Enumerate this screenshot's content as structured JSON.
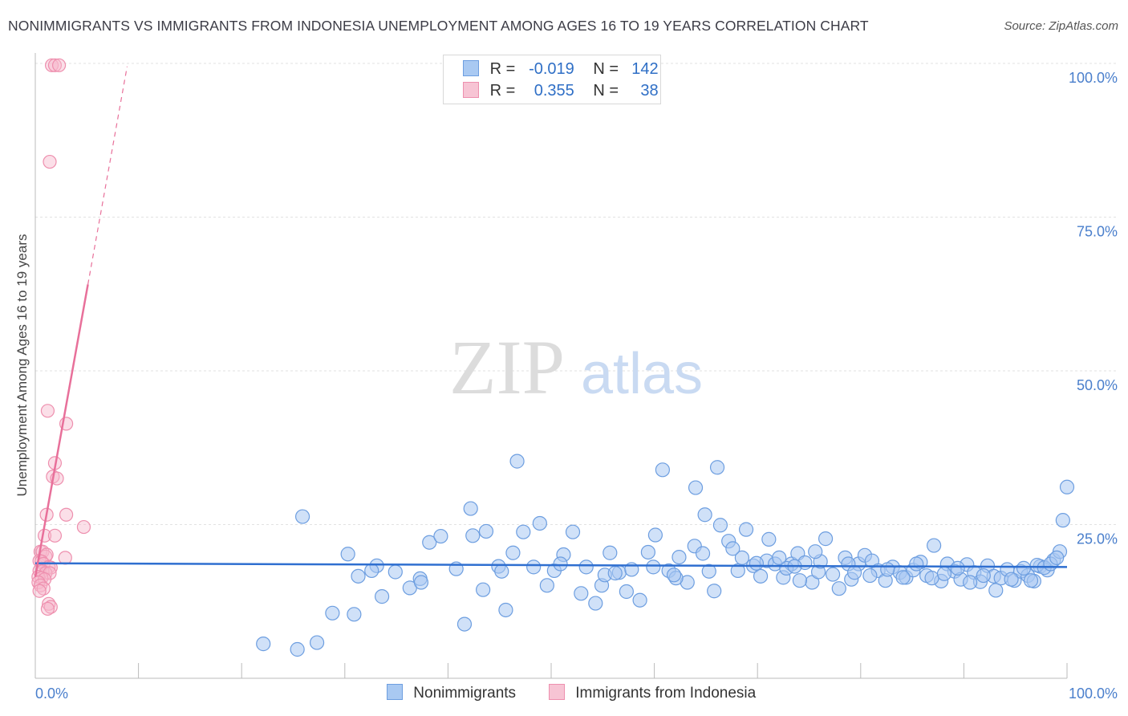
{
  "title": "NONIMMIGRANTS VS IMMIGRANTS FROM INDONESIA UNEMPLOYMENT AMONG AGES 16 TO 19 YEARS CORRELATION CHART",
  "source": "Source: ZipAtlas.com",
  "watermark": {
    "zip": "ZIP",
    "atlas": "atlas"
  },
  "legend": {
    "rows": [
      {
        "r_label": "R =",
        "r_value": "-0.019",
        "n_label": "N =",
        "n_value": "142"
      },
      {
        "r_label": "R =",
        "r_value": "0.355",
        "n_label": "N =",
        "n_value": "38"
      }
    ]
  },
  "bottom_legend": {
    "nonimmigrants": "Nonimmigrants",
    "immigrants": "Immigrants from Indonesia"
  },
  "colors": {
    "blue_fill": "#a9c9f2",
    "blue_stroke": "#6d9ee0",
    "blue_line": "#2f6fd0",
    "pink_fill": "#f7b9cc",
    "pink_stroke": "#ee8fae",
    "pink_line": "#e8709a",
    "axis_text": "#4a7fcc",
    "grid": "#e2e2e2"
  },
  "chart_data": {
    "type": "scatter",
    "title": "NONIMMIGRANTS VS IMMIGRANTS FROM INDONESIA UNEMPLOYMENT AMONG AGES 16 TO 19 YEARS CORRELATION CHART",
    "xlabel": "",
    "ylabel": "Unemployment Among Ages 16 to 19 years",
    "xlim": [
      0,
      100
    ],
    "ylim": [
      0,
      100
    ],
    "x_tick_labels": {
      "min": "0.0%",
      "max": "100.0%"
    },
    "y_tick_labels": [
      {
        "value": 100,
        "label": "100.0%"
      },
      {
        "value": 75,
        "label": "75.0%"
      },
      {
        "value": 50,
        "label": "50.0%"
      },
      {
        "value": 25,
        "label": "25.0%"
      }
    ],
    "grid": true,
    "series": [
      {
        "name": "Nonimmigrants",
        "R": -0.019,
        "N": 142,
        "trend": {
          "x0": 0,
          "y0": 18.7,
          "x1": 100,
          "y1": 18.1
        },
        "points": [
          [
            22.1,
            5.6
          ],
          [
            25.4,
            4.7
          ],
          [
            27.3,
            5.8
          ],
          [
            28.8,
            10.6
          ],
          [
            30.3,
            20.2
          ],
          [
            31.3,
            16.6
          ],
          [
            33.1,
            18.3
          ],
          [
            33.6,
            13.3
          ],
          [
            34.9,
            17.3
          ],
          [
            36.3,
            14.7
          ],
          [
            37.3,
            16.2
          ],
          [
            38.2,
            22.1
          ],
          [
            39.3,
            23.1
          ],
          [
            40.8,
            17.8
          ],
          [
            41.6,
            8.8
          ],
          [
            42.4,
            23.2
          ],
          [
            43.4,
            14.4
          ],
          [
            43.7,
            23.9
          ],
          [
            44.9,
            18.2
          ],
          [
            45.6,
            11.1
          ],
          [
            46.3,
            20.4
          ],
          [
            46.7,
            35.3
          ],
          [
            47.3,
            23.8
          ],
          [
            48.3,
            18.1
          ],
          [
            48.9,
            25.2
          ],
          [
            49.6,
            15.1
          ],
          [
            50.3,
            17.5
          ],
          [
            51.2,
            20.1
          ],
          [
            52.1,
            23.8
          ],
          [
            52.9,
            13.8
          ],
          [
            53.4,
            18.1
          ],
          [
            54.3,
            12.2
          ],
          [
            54.9,
            15.1
          ],
          [
            55.7,
            20.4
          ],
          [
            56.6,
            17.2
          ],
          [
            57.3,
            14.1
          ],
          [
            57.8,
            17.7
          ],
          [
            58.6,
            12.7
          ],
          [
            59.4,
            20.5
          ],
          [
            60.1,
            23.3
          ],
          [
            60.8,
            33.9
          ],
          [
            61.4,
            17.5
          ],
          [
            62.4,
            19.7
          ],
          [
            63.2,
            15.6
          ],
          [
            63.9,
            21.5
          ],
          [
            64.7,
            20.3
          ],
          [
            65.3,
            17.4
          ],
          [
            65.8,
            14.2
          ],
          [
            66.4,
            24.9
          ],
          [
            67.2,
            22.3
          ],
          [
            68.1,
            17.5
          ],
          [
            68.9,
            24.2
          ],
          [
            69.6,
            18.3
          ],
          [
            70.3,
            16.6
          ],
          [
            70.9,
            19.1
          ],
          [
            71.7,
            18.6
          ],
          [
            72.5,
            16.4
          ],
          [
            73.3,
            18.6
          ],
          [
            73.9,
            20.3
          ],
          [
            74.6,
            18.8
          ],
          [
            75.3,
            15.6
          ],
          [
            75.9,
            17.3
          ],
          [
            76.6,
            22.7
          ],
          [
            77.3,
            16.9
          ],
          [
            77.9,
            14.6
          ],
          [
            78.5,
            19.6
          ],
          [
            79.1,
            16.1
          ],
          [
            79.8,
            18.6
          ],
          [
            80.4,
            20.0
          ],
          [
            81.1,
            19.1
          ],
          [
            81.7,
            17.5
          ],
          [
            82.4,
            15.9
          ],
          [
            83.1,
            18.1
          ],
          [
            83.8,
            17.2
          ],
          [
            84.4,
            16.4
          ],
          [
            85.1,
            17.6
          ],
          [
            85.8,
            18.9
          ],
          [
            86.4,
            16.7
          ],
          [
            87.1,
            21.6
          ],
          [
            87.8,
            15.8
          ],
          [
            88.4,
            18.6
          ],
          [
            89.1,
            17.4
          ],
          [
            89.7,
            16.1
          ],
          [
            90.3,
            18.5
          ],
          [
            91.0,
            17.2
          ],
          [
            91.6,
            15.7
          ],
          [
            92.3,
            18.3
          ],
          [
            92.9,
            16.6
          ],
          [
            93.6,
            16.3
          ],
          [
            94.2,
            17.7
          ],
          [
            94.9,
            15.9
          ],
          [
            95.5,
            17.4
          ],
          [
            96.2,
            16.7
          ],
          [
            96.8,
            15.8
          ],
          [
            97.4,
            18.2
          ],
          [
            98.1,
            17.6
          ],
          [
            98.7,
            19.2
          ],
          [
            99.3,
            20.6
          ],
          [
            99.6,
            25.7
          ],
          [
            100.0,
            31.1
          ],
          [
            64.0,
            31.0
          ],
          [
            66.1,
            34.3
          ],
          [
            42.2,
            27.6
          ],
          [
            25.9,
            26.3
          ],
          [
            64.9,
            26.6
          ],
          [
            37.4,
            15.6
          ],
          [
            45.2,
            17.4
          ],
          [
            55.2,
            16.8
          ],
          [
            62.1,
            16.3
          ],
          [
            68.5,
            19.6
          ],
          [
            71.1,
            22.6
          ],
          [
            72.8,
            17.9
          ],
          [
            74.1,
            15.9
          ],
          [
            76.1,
            19.0
          ],
          [
            78.8,
            18.6
          ],
          [
            80.9,
            16.7
          ],
          [
            82.6,
            17.7
          ],
          [
            84.1,
            16.4
          ],
          [
            85.4,
            18.6
          ],
          [
            86.9,
            16.3
          ],
          [
            88.1,
            17.0
          ],
          [
            89.4,
            17.9
          ],
          [
            90.6,
            15.6
          ],
          [
            91.9,
            16.7
          ],
          [
            93.1,
            14.3
          ],
          [
            94.6,
            16.1
          ],
          [
            95.8,
            17.9
          ],
          [
            96.5,
            15.9
          ],
          [
            97.1,
            18.4
          ],
          [
            97.8,
            18.0
          ],
          [
            98.4,
            18.6
          ],
          [
            99.0,
            19.6
          ],
          [
            30.9,
            10.4
          ],
          [
            32.6,
            17.5
          ],
          [
            50.9,
            18.6
          ],
          [
            56.2,
            17.1
          ],
          [
            59.9,
            18.1
          ],
          [
            61.9,
            16.8
          ],
          [
            67.6,
            21.1
          ],
          [
            69.9,
            18.7
          ],
          [
            72.1,
            19.6
          ],
          [
            73.6,
            18.2
          ],
          [
            75.6,
            20.6
          ],
          [
            79.4,
            17.2
          ]
        ]
      },
      {
        "name": "Immigrants from Indonesia",
        "R": 0.355,
        "N": 38,
        "trend": {
          "x0": 0,
          "y0": 16.5,
          "x1": 8.9,
          "y1": 99.5,
          "solid_until_x": 5.1
        },
        "points": [
          [
            1.6,
            99.7
          ],
          [
            1.9,
            99.7
          ],
          [
            2.3,
            99.7
          ],
          [
            1.4,
            84.0
          ],
          [
            1.2,
            43.5
          ],
          [
            3.0,
            41.4
          ],
          [
            1.9,
            35.0
          ],
          [
            1.7,
            32.8
          ],
          [
            2.1,
            32.5
          ],
          [
            1.1,
            26.6
          ],
          [
            3.0,
            26.6
          ],
          [
            4.7,
            24.6
          ],
          [
            0.9,
            23.2
          ],
          [
            1.9,
            23.2
          ],
          [
            0.5,
            20.6
          ],
          [
            0.7,
            20.6
          ],
          [
            1.0,
            19.8
          ],
          [
            1.1,
            20.1
          ],
          [
            2.9,
            19.6
          ],
          [
            0.4,
            19.1
          ],
          [
            0.6,
            19.0
          ],
          [
            0.8,
            18.6
          ],
          [
            1.3,
            18.1
          ],
          [
            1.5,
            18.0
          ],
          [
            0.4,
            17.5
          ],
          [
            0.7,
            17.4
          ],
          [
            1.0,
            17.1
          ],
          [
            1.4,
            17.1
          ],
          [
            0.3,
            16.5
          ],
          [
            0.6,
            16.3
          ],
          [
            0.9,
            16.1
          ],
          [
            0.3,
            15.6
          ],
          [
            0.5,
            15.1
          ],
          [
            0.8,
            14.6
          ],
          [
            0.4,
            14.2
          ],
          [
            1.3,
            12.1
          ],
          [
            1.5,
            11.6
          ],
          [
            1.2,
            11.3
          ]
        ]
      }
    ]
  }
}
